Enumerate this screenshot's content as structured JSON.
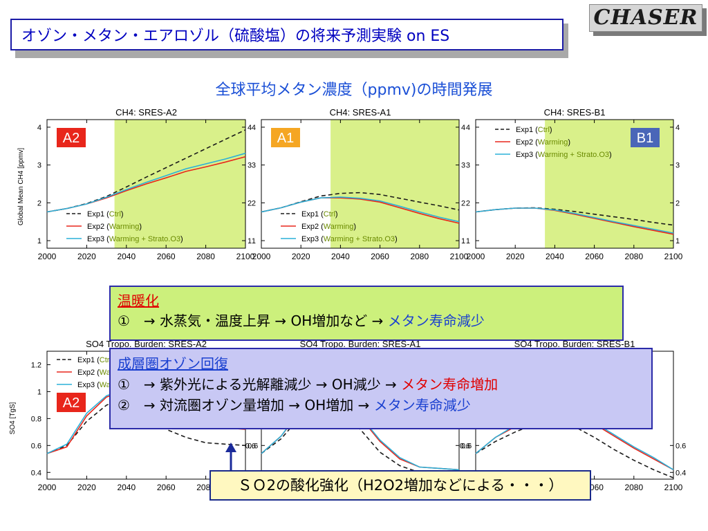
{
  "title": "オゾン・メタン・エアロゾル（硫酸塩）の将来予測実験 on ES",
  "logo": "CHASER",
  "subtitle": "全球平均メタン濃度（ppmv)の時間発展",
  "colors": {
    "exp1": "#1a1a1a",
    "exp2": "#e8261b",
    "exp3": "#2ab0d8",
    "highlight": "#d9f08a",
    "callout_green": "#ccf07c",
    "callout_blue": "#c8c8f4"
  },
  "ch4_ylabel": "Global Mean CH4 [ppmv]",
  "so4_ylabel": "SO4 [TgS]",
  "legend": {
    "exp1": "Exp1 (Ctrl)",
    "exp2": "Exp2 (Warming)",
    "exp3": "Exp3 (Warming + Strato.O3)"
  },
  "chart_data": [
    {
      "type": "line",
      "title": "CH4:  SRES-A2",
      "badge": "A2",
      "badge_color": "#e8261b",
      "xlabel": "",
      "ylabel": "Global Mean CH4 [ppmv]",
      "xlim": [
        2000,
        2100
      ],
      "ylim": [
        0.8,
        4.2
      ],
      "x_ticks": [
        2000,
        2020,
        2040,
        2060,
        2080,
        2100
      ],
      "y_ticks": [
        1,
        2,
        3,
        4
      ],
      "highlight_x": [
        2034,
        2100
      ],
      "legend_position": "bottom-left",
      "x": [
        2000,
        2010,
        2020,
        2030,
        2040,
        2050,
        2060,
        2070,
        2080,
        2090,
        2100
      ],
      "series": [
        {
          "name": "Exp1 (Ctrl)",
          "style": "dashed",
          "values": [
            1.76,
            1.85,
            1.98,
            2.17,
            2.42,
            2.68,
            2.93,
            3.18,
            3.43,
            3.68,
            3.93
          ]
        },
        {
          "name": "Exp2 (Warming)",
          "style": "solid",
          "values": [
            1.76,
            1.85,
            1.97,
            2.13,
            2.32,
            2.5,
            2.66,
            2.83,
            2.95,
            3.08,
            3.22
          ]
        },
        {
          "name": "Exp3 (Warming + Strato.O3)",
          "style": "solid",
          "values": [
            1.76,
            1.85,
            1.97,
            2.15,
            2.35,
            2.54,
            2.72,
            2.9,
            3.03,
            3.16,
            3.31
          ]
        }
      ]
    },
    {
      "type": "line",
      "title": "CH4:  SRES-A1",
      "badge": "A1",
      "badge_color": "#f5a623",
      "xlabel": "",
      "ylabel": "",
      "xlim": [
        2000,
        2100
      ],
      "ylim": [
        0.8,
        4.2
      ],
      "x_ticks": [
        2000,
        2020,
        2040,
        2060,
        2080,
        2100
      ],
      "y_ticks": [
        1,
        2,
        3,
        4
      ],
      "highlight_x": [
        2035,
        2100
      ],
      "legend_position": "bottom-left",
      "x": [
        2000,
        2010,
        2020,
        2030,
        2040,
        2050,
        2060,
        2070,
        2080,
        2090,
        2100
      ],
      "series": [
        {
          "name": "Exp1 (Ctrl)",
          "style": "dashed",
          "values": [
            1.76,
            1.87,
            2.03,
            2.18,
            2.25,
            2.27,
            2.22,
            2.12,
            2.02,
            1.92,
            1.81
          ]
        },
        {
          "name": "Exp2 (Warming)",
          "style": "solid",
          "values": [
            1.76,
            1.87,
            2.02,
            2.13,
            2.13,
            2.1,
            2.02,
            1.87,
            1.72,
            1.58,
            1.46
          ]
        },
        {
          "name": "Exp3 (Warming + Strato.O3)",
          "style": "solid",
          "values": [
            1.76,
            1.87,
            2.02,
            2.13,
            2.15,
            2.12,
            2.05,
            1.91,
            1.76,
            1.62,
            1.5
          ]
        }
      ]
    },
    {
      "type": "line",
      "title": "CH4:  SRES-B1",
      "badge": "B1",
      "badge_color": "#4a66b8",
      "xlabel": "",
      "ylabel": "",
      "xlim": [
        2000,
        2100
      ],
      "ylim": [
        0.8,
        4.2
      ],
      "x_ticks": [
        2000,
        2020,
        2040,
        2060,
        2080,
        2100
      ],
      "y_ticks": [
        1,
        2,
        3,
        4
      ],
      "highlight_x": [
        2035,
        2100
      ],
      "legend_position": "top-left",
      "x": [
        2000,
        2010,
        2020,
        2030,
        2040,
        2050,
        2060,
        2070,
        2080,
        2090,
        2100
      ],
      "series": [
        {
          "name": "Exp1 (Ctrl)",
          "style": "dashed",
          "values": [
            1.76,
            1.82,
            1.86,
            1.87,
            1.83,
            1.77,
            1.7,
            1.63,
            1.56,
            1.48,
            1.41
          ]
        },
        {
          "name": "Exp2 (Warming)",
          "style": "solid",
          "values": [
            1.76,
            1.82,
            1.86,
            1.86,
            1.8,
            1.7,
            1.59,
            1.48,
            1.37,
            1.27,
            1.17
          ]
        },
        {
          "name": "Exp3 (Warming + Strato.O3)",
          "style": "solid",
          "values": [
            1.76,
            1.82,
            1.86,
            1.86,
            1.81,
            1.72,
            1.61,
            1.5,
            1.4,
            1.3,
            1.2
          ]
        }
      ]
    },
    {
      "type": "line",
      "title": "SO4 Tropo. Burden: SRES-A2",
      "badge": "A2",
      "badge_color": "#e8261b",
      "xlabel": "",
      "ylabel": "SO4 [TgS]",
      "xlim": [
        2000,
        2100
      ],
      "ylim": [
        0.35,
        1.3
      ],
      "x_ticks": [
        2000,
        2020,
        2040,
        2060,
        2080,
        2100
      ],
      "y_ticks": [
        0.4,
        0.6,
        0.8,
        1,
        1.2
      ],
      "legend_position": "top-left",
      "x": [
        2000,
        2010,
        2020,
        2030,
        2040,
        2050,
        2060,
        2070,
        2080,
        2090,
        2100
      ],
      "series": [
        {
          "name": "Exp1 (Ctrl)",
          "style": "dashed",
          "values": [
            0.54,
            0.6,
            0.78,
            0.9,
            0.95,
            0.85,
            0.72,
            0.66,
            0.62,
            0.61,
            0.6
          ]
        },
        {
          "name": "Exp2 (Warming)",
          "style": "solid",
          "values": [
            0.54,
            0.59,
            0.82,
            0.96,
            1.01,
            0.95,
            0.85,
            0.8,
            0.75,
            0.73,
            0.72
          ]
        },
        {
          "name": "Exp3 (Warming + Strato.O3)",
          "style": "solid",
          "values": [
            0.54,
            0.61,
            0.84,
            0.97,
            1.02,
            0.96,
            0.86,
            0.81,
            0.76,
            0.74,
            0.73
          ]
        }
      ]
    },
    {
      "type": "line",
      "title": "SO4 Tropo. Burden: SRES-A1",
      "badge": "",
      "badge_color": "",
      "xlabel": "",
      "ylabel": "",
      "xlim": [
        2000,
        2100
      ],
      "ylim": [
        0.35,
        1.3
      ],
      "x_ticks": [
        2000,
        2020,
        2040,
        2060,
        2080,
        2100
      ],
      "y_ticks": [
        0.4,
        0.6
      ],
      "legend_position": "",
      "x": [
        2000,
        2010,
        2020,
        2030,
        2040,
        2050,
        2060,
        2070,
        2080,
        2090,
        2100
      ],
      "series": [
        {
          "name": "Exp1 (Ctrl)",
          "style": "dashed",
          "values": [
            0.54,
            0.65,
            0.82,
            0.92,
            0.88,
            0.72,
            0.55,
            0.45,
            0.4,
            0.38,
            0.37
          ]
        },
        {
          "name": "Exp2 (Warming)",
          "style": "solid",
          "values": [
            0.54,
            0.67,
            0.86,
            0.98,
            0.96,
            0.81,
            0.63,
            0.5,
            0.44,
            0.43,
            0.42
          ]
        },
        {
          "name": "Exp3 (Warming + Strato.O3)",
          "style": "solid",
          "values": [
            0.54,
            0.67,
            0.87,
            0.99,
            0.97,
            0.82,
            0.64,
            0.51,
            0.44,
            0.43,
            0.42
          ]
        }
      ]
    },
    {
      "type": "line",
      "title": "SO4 Tropo. Burden: SRES-B1",
      "badge": "",
      "badge_color": "",
      "xlabel": "",
      "ylabel": "",
      "xlim": [
        2000,
        2100
      ],
      "ylim": [
        0.35,
        1.3
      ],
      "x_ticks": [
        2000,
        2020,
        2040,
        2060,
        2080,
        2100
      ],
      "y_ticks": [
        0.4,
        0.6
      ],
      "legend_position": "",
      "x": [
        2000,
        2010,
        2020,
        2030,
        2040,
        2050,
        2060,
        2070,
        2080,
        2090,
        2100
      ],
      "series": [
        {
          "name": "Exp1 (Ctrl)",
          "style": "dashed",
          "values": [
            0.54,
            0.63,
            0.7,
            0.76,
            0.78,
            0.74,
            0.66,
            0.57,
            0.49,
            0.42,
            0.36
          ]
        },
        {
          "name": "Exp2 (Warming)",
          "style": "solid",
          "values": [
            0.54,
            0.66,
            0.74,
            0.82,
            0.86,
            0.83,
            0.76,
            0.67,
            0.58,
            0.5,
            0.42
          ]
        },
        {
          "name": "Exp3 (Warming + Strato.O3)",
          "style": "solid",
          "values": [
            0.54,
            0.66,
            0.75,
            0.83,
            0.87,
            0.84,
            0.77,
            0.68,
            0.59,
            0.51,
            0.42
          ]
        }
      ]
    }
  ],
  "callout_warming": {
    "heading": "温暖化",
    "line1_a": "①　→ 水蒸気・温度上昇 → OH増加など → ",
    "line1_b": "メタン寿命減少"
  },
  "callout_strato": {
    "heading": "成層圏オゾン回復",
    "line1_a": "①　→ 紫外光による光解離減少 → OH減少 → ",
    "line1_b": "メタン寿命増加",
    "line2_a": "②　→ 対流圏オゾン量増加 → OH増加 → ",
    "line2_b": "メタン寿命減少"
  },
  "callout_so2": "ＳＯ2の酸化強化（H2O2増加などによる・・・）"
}
